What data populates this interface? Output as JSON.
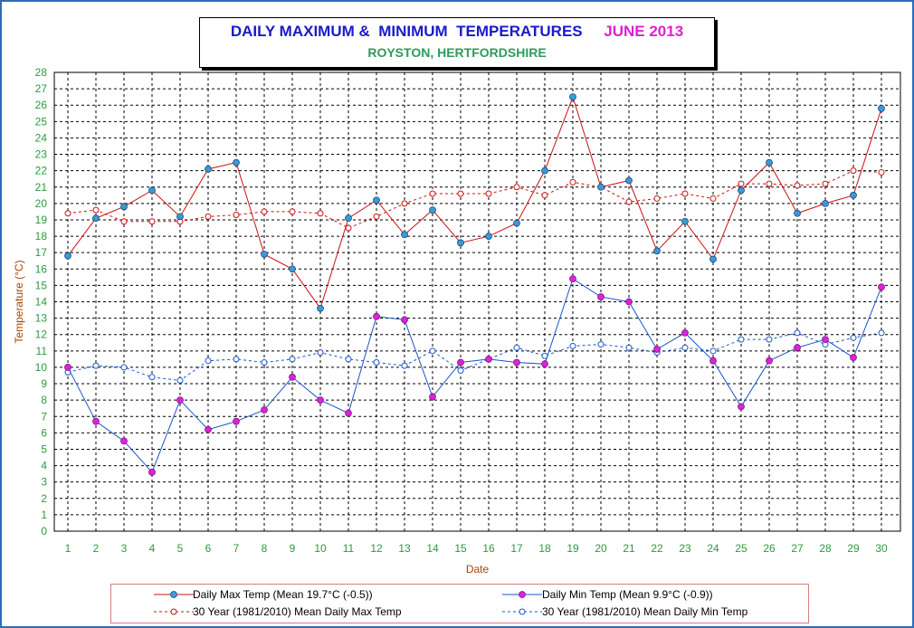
{
  "title": {
    "main": "DAILY MAXIMUM &  MINIMUM  TEMPERATURES",
    "month": "JUNE 2013",
    "subtitle": "ROYSTON, HERTFORDSHIRE"
  },
  "colors": {
    "max": "#cc1010",
    "min": "#1a55cc",
    "max_marker": "#3a9ad8",
    "min_marker": "#e020e0",
    "axis_text": "#2a9a40",
    "ylabel": "#aa4400",
    "title_blue": "#1a1acc",
    "title_pink": "#e020d0",
    "subtitle": "#2e9a5a",
    "frame": "#2e6db8"
  },
  "chart_data": {
    "type": "line",
    "xlabel": "Date",
    "ylabel": "Temperature (°C)",
    "ylim": [
      0,
      28
    ],
    "grid": true,
    "legend_position": "bottom",
    "x": [
      1,
      2,
      3,
      4,
      5,
      6,
      7,
      8,
      9,
      10,
      11,
      12,
      13,
      14,
      15,
      16,
      17,
      18,
      19,
      20,
      21,
      22,
      23,
      24,
      25,
      26,
      27,
      28,
      29,
      30
    ],
    "y_ticks": [
      0,
      1,
      2,
      3,
      4,
      5,
      6,
      7,
      8,
      9,
      10,
      11,
      12,
      13,
      14,
      15,
      16,
      17,
      18,
      19,
      20,
      21,
      22,
      23,
      24,
      25,
      26,
      27,
      28
    ],
    "series": [
      {
        "name": "Daily Max Temp (Mean 19.7°C (-0.5))",
        "style": "solid",
        "values": [
          16.8,
          19.1,
          19.8,
          20.8,
          19.2,
          22.1,
          22.5,
          16.9,
          16.0,
          13.6,
          19.1,
          20.2,
          18.1,
          19.6,
          17.6,
          18.0,
          18.8,
          22.0,
          26.5,
          21.0,
          21.4,
          17.1,
          18.9,
          16.6,
          20.8,
          22.5,
          19.4,
          20.0,
          20.5,
          25.8
        ]
      },
      {
        "name": "Daily Min Temp (Mean 9.9°C (-0.9))",
        "style": "solid",
        "values": [
          10.0,
          6.7,
          5.5,
          3.6,
          8.0,
          6.2,
          6.7,
          7.4,
          9.4,
          8.0,
          7.2,
          13.1,
          12.9,
          8.2,
          10.3,
          10.5,
          10.3,
          10.2,
          15.4,
          14.3,
          14.0,
          11.1,
          12.1,
          10.4,
          7.6,
          10.4,
          11.2,
          11.7,
          10.6,
          14.9
        ]
      },
      {
        "name": "30 Year (1981/2010) Mean Daily Max Temp",
        "style": "dashed",
        "values": [
          19.4,
          19.6,
          18.9,
          18.9,
          18.9,
          19.2,
          19.3,
          19.5,
          19.5,
          19.4,
          18.5,
          19.2,
          20.0,
          20.6,
          20.6,
          20.6,
          21.0,
          20.5,
          21.3,
          21.0,
          20.1,
          20.3,
          20.6,
          20.3,
          21.2,
          21.2,
          21.1,
          21.2,
          22.0,
          21.9
        ]
      },
      {
        "name": "30 Year (1981/2010) Mean Daily Min Temp",
        "style": "dashed",
        "values": [
          9.7,
          10.1,
          10.0,
          9.4,
          9.2,
          10.4,
          10.5,
          10.3,
          10.5,
          10.9,
          10.5,
          10.3,
          10.1,
          11.0,
          9.8,
          10.5,
          11.2,
          10.7,
          11.3,
          11.4,
          11.2,
          10.9,
          11.2,
          11.0,
          11.7,
          11.7,
          12.1,
          11.4,
          11.8,
          12.1
        ]
      }
    ]
  }
}
